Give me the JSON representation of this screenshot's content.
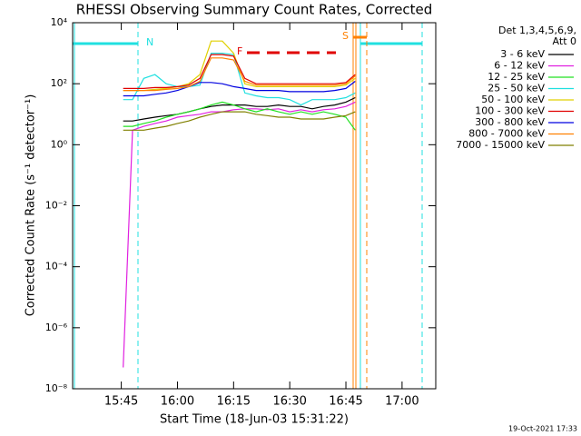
{
  "chart_data": {
    "type": "line",
    "title": "RHESSI Observing Summary Count Rates, Corrected",
    "x_label": "Start Time (18-Jun-03 15:31:22)",
    "y_label": "Corrected Count Rate (s⁻¹ detector⁻¹)",
    "legend_title": [
      "Det 1,3,4,5,6,9,",
      "Att 0"
    ],
    "footer": "19-Oct-2021 17:33",
    "annotations": [
      "N",
      "F",
      "S"
    ],
    "log_y": true,
    "legend": "right",
    "xlim": [
      32,
      129
    ],
    "xticks": [
      {
        "value": 45,
        "label": "15:45"
      },
      {
        "value": 60,
        "label": "16:00"
      },
      {
        "value": 75,
        "label": "16:15"
      },
      {
        "value": 90,
        "label": "16:30"
      },
      {
        "value": 105,
        "label": "16:45"
      },
      {
        "value": 120,
        "label": "17:00"
      }
    ],
    "ylim": [
      1e-08,
      10000
    ],
    "yticks": [
      {
        "value": 10000,
        "label": "10⁴"
      },
      {
        "value": 100,
        "label": "10²"
      },
      {
        "value": 1,
        "label": "10⁰"
      },
      {
        "value": 0.01,
        "label": "10⁻²"
      },
      {
        "value": 0.0001,
        "label": "10⁻⁴"
      },
      {
        "value": 1e-06,
        "label": "10⁻⁶"
      },
      {
        "value": 1e-08,
        "label": "10⁻⁸"
      }
    ],
    "x": [
      45.5,
      48,
      51,
      54,
      57,
      60,
      63,
      66,
      69,
      72,
      75,
      78,
      81,
      84,
      87,
      90,
      93,
      96,
      99,
      102,
      105,
      107.5
    ],
    "series": [
      {
        "name": "3 - 6 keV",
        "color": "#000000",
        "values": [
          6,
          6,
          7,
          8,
          9,
          10,
          12,
          15,
          18,
          20,
          20,
          20,
          18,
          18,
          20,
          18,
          18,
          15,
          18,
          20,
          25,
          35
        ]
      },
      {
        "name": "6 - 12 keV",
        "color": "#e020e0",
        "values": [
          5e-08,
          3,
          4,
          5,
          6,
          8,
          9,
          10,
          12,
          12,
          14,
          15,
          15,
          14,
          15,
          12,
          14,
          12,
          14,
          15,
          18,
          25
        ]
      },
      {
        "name": "12 - 25 keV",
        "color": "#20e020",
        "values": [
          4,
          4,
          5,
          6,
          8,
          10,
          12,
          15,
          20,
          25,
          20,
          15,
          12,
          15,
          12,
          10,
          12,
          10,
          12,
          10,
          8,
          3
        ]
      },
      {
        "name": "25 - 50 keV",
        "color": "#20e0e0",
        "values": [
          30,
          30,
          150,
          200,
          100,
          80,
          80,
          90,
          1000,
          1000,
          900,
          50,
          40,
          35,
          35,
          30,
          20,
          30,
          30,
          30,
          35,
          50
        ]
      },
      {
        "name": "50 - 100 keV",
        "color": "#e0d000",
        "values": [
          60,
          60,
          60,
          65,
          70,
          80,
          100,
          200,
          2500,
          2500,
          1000,
          100,
          80,
          80,
          80,
          80,
          80,
          80,
          80,
          80,
          90,
          150
        ]
      },
      {
        "name": "100 - 300 keV",
        "color": "#e00000",
        "values": [
          70,
          70,
          70,
          75,
          75,
          80,
          90,
          150,
          900,
          900,
          800,
          150,
          100,
          100,
          100,
          100,
          100,
          100,
          100,
          100,
          110,
          200
        ]
      },
      {
        "name": "300 - 800 keV",
        "color": "#0000e0",
        "values": [
          40,
          40,
          40,
          45,
          50,
          60,
          80,
          110,
          110,
          100,
          80,
          70,
          60,
          60,
          60,
          55,
          55,
          55,
          55,
          60,
          70,
          120
        ]
      },
      {
        "name": "800 - 7000 keV",
        "color": "#ff8000",
        "values": [
          60,
          60,
          60,
          60,
          65,
          70,
          80,
          120,
          700,
          700,
          600,
          120,
          90,
          90,
          90,
          90,
          90,
          90,
          90,
          90,
          100,
          180
        ]
      },
      {
        "name": "7000 - 15000 keV",
        "color": "#808000",
        "values": [
          3,
          3,
          3,
          3.5,
          4,
          5,
          6,
          8,
          10,
          12,
          12,
          12,
          10,
          9,
          8,
          8,
          7,
          7,
          7,
          8,
          9,
          12
        ]
      }
    ]
  }
}
